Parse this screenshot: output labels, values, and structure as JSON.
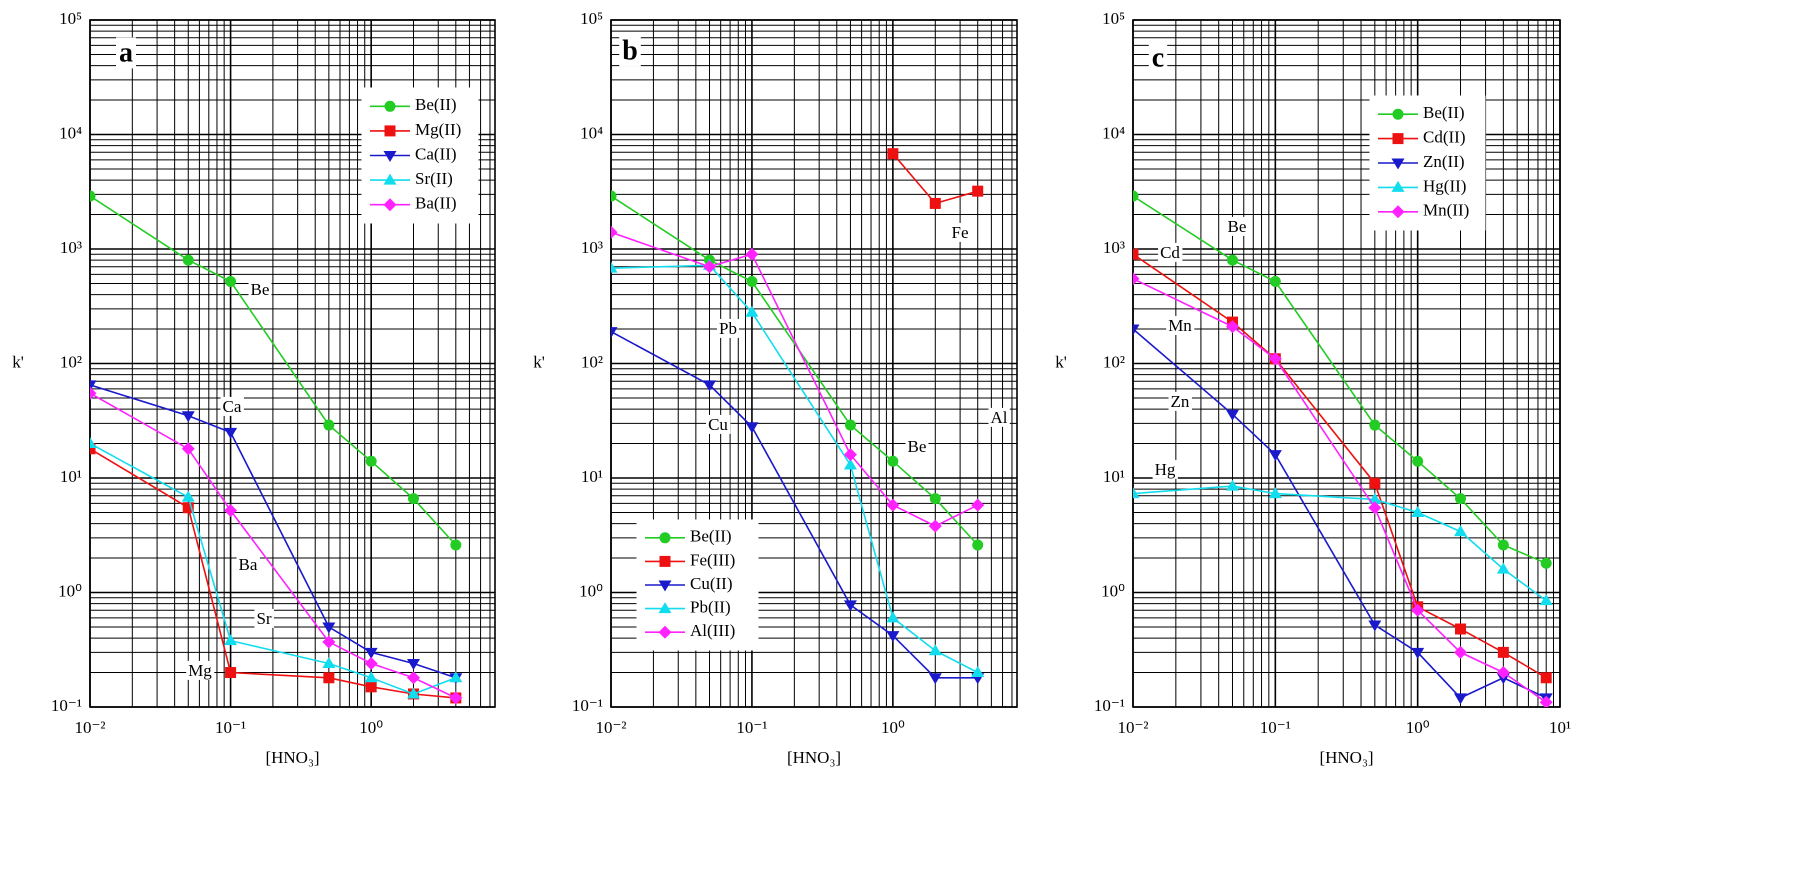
{
  "chart_data": [
    {
      "type": "line",
      "panel_label": "a",
      "x": [
        0.01,
        0.05,
        0.1,
        0.5,
        1,
        2,
        4
      ],
      "xlabel": "[HNO₃]",
      "ylabel": "k'",
      "xscale": "log",
      "yscale": "log",
      "grid": true,
      "minor_grid": true,
      "legend": "upper right",
      "xlim": [
        0.01,
        7.6
      ],
      "ylim": [
        0.1,
        100000
      ],
      "xticks": [
        {
          "value": 0.01,
          "label": "10⁻²"
        },
        {
          "value": 0.1,
          "label": "10⁻¹"
        },
        {
          "value": 1,
          "label": "10⁰"
        }
      ],
      "yticks": [
        {
          "value": 0.1,
          "label": "10⁻¹"
        },
        {
          "value": 1,
          "label": "10⁰"
        },
        {
          "value": 10,
          "label": "10¹"
        },
        {
          "value": 100,
          "label": "10²"
        },
        {
          "value": 1000,
          "label": "10³"
        },
        {
          "value": 10000,
          "label": "10⁴"
        },
        {
          "value": 100000,
          "label": "10⁵"
        }
      ],
      "series": [
        {
          "name": "Be(II)",
          "color": "#22cc22",
          "marker": "circle",
          "values": [
            2900,
            800,
            520,
            29,
            14,
            6.6,
            2.6
          ]
        },
        {
          "name": "Mg(II)",
          "color": "#ee1111",
          "marker": "square",
          "values": [
            18,
            5.5,
            0.2,
            0.18,
            0.15,
            0.13,
            0.12
          ]
        },
        {
          "name": "Ca(II)",
          "color": "#1a1acc",
          "marker": "triangle-down",
          "values": [
            65,
            35,
            25,
            0.5,
            0.3,
            0.24,
            0.18
          ]
        },
        {
          "name": "Sr(II)",
          "color": "#11ddee",
          "marker": "triangle-up",
          "values": [
            20,
            6.8,
            0.38,
            0.24,
            0.18,
            0.13,
            0.18
          ]
        },
        {
          "name": "Ba(II)",
          "color": "#ff22ff",
          "marker": "diamond",
          "values": [
            55,
            18,
            5.2,
            0.37,
            0.24,
            0.18,
            0.12
          ]
        }
      ],
      "annotations": [
        "Be",
        "Ca",
        "Ba",
        "Sr",
        "Mg"
      ]
    },
    {
      "type": "line",
      "panel_label": "b",
      "x": [
        0.01,
        0.05,
        0.1,
        0.5,
        1,
        2,
        4
      ],
      "xlabel": "[HNO₃]",
      "ylabel": "k'",
      "xscale": "log",
      "yscale": "log",
      "grid": true,
      "minor_grid": true,
      "legend": "lower left",
      "xlim": [
        0.01,
        7.6
      ],
      "ylim": [
        0.1,
        100000
      ],
      "xticks": [
        {
          "value": 0.01,
          "label": "10⁻²"
        },
        {
          "value": 0.1,
          "label": "10⁻¹"
        },
        {
          "value": 1,
          "label": "10⁰"
        }
      ],
      "yticks": [
        {
          "value": 0.1,
          "label": "10⁻¹"
        },
        {
          "value": 1,
          "label": "10⁰"
        },
        {
          "value": 10,
          "label": "10¹"
        },
        {
          "value": 100,
          "label": "10²"
        },
        {
          "value": 1000,
          "label": "10³"
        },
        {
          "value": 10000,
          "label": "10⁴"
        },
        {
          "value": 100000,
          "label": "10⁵"
        }
      ],
      "series": [
        {
          "name": "Be(II)",
          "color": "#22cc22",
          "marker": "circle",
          "values": [
            2900,
            800,
            520,
            29,
            14,
            6.6,
            2.6
          ]
        },
        {
          "name": "Fe(III)",
          "color": "#ee1111",
          "marker": "square",
          "values": [
            null,
            null,
            null,
            null,
            6800,
            2500,
            3200
          ]
        },
        {
          "name": "Cu(II)",
          "color": "#1a1acc",
          "marker": "triangle-down",
          "values": [
            190,
            65,
            28,
            0.78,
            0.42,
            0.18,
            0.18
          ]
        },
        {
          "name": "Pb(II)",
          "color": "#11ddee",
          "marker": "triangle-up",
          "values": [
            680,
            720,
            280,
            13,
            0.6,
            0.31,
            0.2
          ]
        },
        {
          "name": "Al(III)",
          "color": "#ff22ff",
          "marker": "diamond",
          "values": [
            1400,
            700,
            900,
            16,
            5.8,
            3.8,
            5.8
          ]
        }
      ],
      "annotations": [
        "Fe",
        "Pb",
        "Cu",
        "Be",
        "Al"
      ]
    },
    {
      "type": "line",
      "panel_label": "c",
      "x": [
        0.01,
        0.05,
        0.1,
        0.5,
        1,
        2,
        4,
        8
      ],
      "xlabel": "[HNO₃]",
      "ylabel": "k'",
      "xscale": "log",
      "yscale": "log",
      "grid": true,
      "minor_grid": true,
      "legend": "upper right",
      "xlim": [
        0.01,
        10
      ],
      "ylim": [
        0.1,
        100000
      ],
      "xticks": [
        {
          "value": 0.01,
          "label": "10⁻²"
        },
        {
          "value": 0.1,
          "label": "10⁻¹"
        },
        {
          "value": 1,
          "label": "10⁰"
        },
        {
          "value": 10,
          "label": "10¹"
        }
      ],
      "yticks": [
        {
          "value": 0.1,
          "label": "10⁻¹"
        },
        {
          "value": 1,
          "label": "10⁰"
        },
        {
          "value": 10,
          "label": "10¹"
        },
        {
          "value": 100,
          "label": "10²"
        },
        {
          "value": 1000,
          "label": "10³"
        },
        {
          "value": 10000,
          "label": "10⁴"
        },
        {
          "value": 100000,
          "label": "10⁵"
        }
      ],
      "series": [
        {
          "name": "Be(II)",
          "color": "#22cc22",
          "marker": "circle",
          "values": [
            2900,
            800,
            520,
            29,
            14,
            6.6,
            2.6,
            1.8
          ]
        },
        {
          "name": "Cd(II)",
          "color": "#ee1111",
          "marker": "square",
          "values": [
            900,
            230,
            110,
            9,
            0.75,
            0.48,
            0.3,
            0.18
          ]
        },
        {
          "name": "Zn(II)",
          "color": "#1a1acc",
          "marker": "triangle-down",
          "values": [
            200,
            36,
            16,
            0.52,
            0.3,
            0.12,
            0.18,
            0.12
          ]
        },
        {
          "name": "Hg(II)",
          "color": "#11ddee",
          "marker": "triangle-up",
          "values": [
            7.3,
            8.5,
            7.3,
            6.5,
            5,
            3.4,
            1.6,
            0.85
          ]
        },
        {
          "name": "Mn(II)",
          "color": "#ff22ff",
          "marker": "diamond",
          "values": [
            550,
            210,
            110,
            5.5,
            0.7,
            0.3,
            0.2,
            0.11
          ]
        }
      ],
      "annotations": [
        "Be",
        "Cd",
        "Mn",
        "Zn",
        "Hg"
      ]
    }
  ]
}
